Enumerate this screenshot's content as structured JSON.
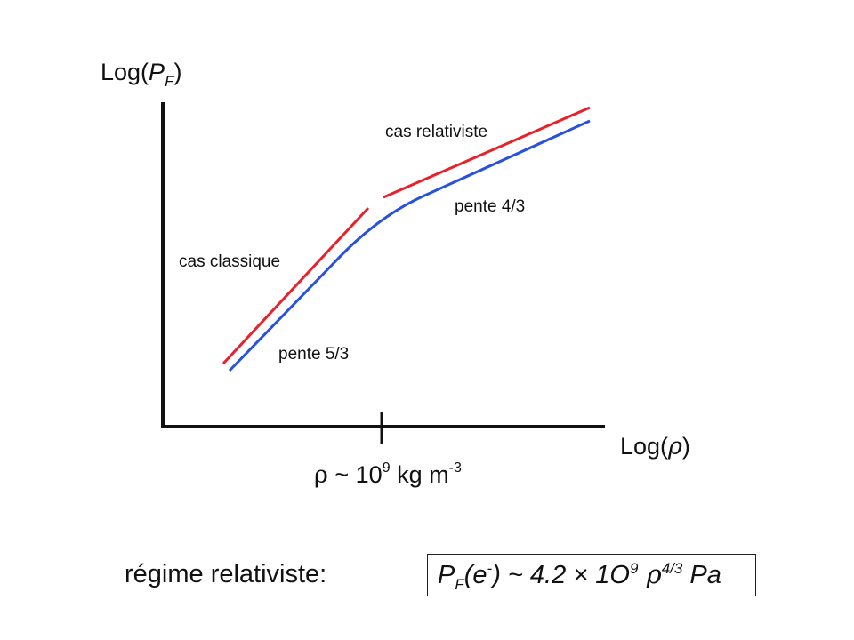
{
  "axes": {
    "y_title_prefix": "Log(",
    "y_title_var": "P",
    "y_title_sub": "F",
    "y_title_suffix": ")",
    "x_title_prefix": "Log(",
    "x_title_var": "ρ",
    "x_title_suffix": ")"
  },
  "curves": {
    "classique_label": "cas classique",
    "relativiste_label": "cas relativiste",
    "slope_classique": "pente 5/3",
    "slope_relativiste": "pente 4/3"
  },
  "threshold": {
    "rho": "ρ",
    "approx": " ~ 10",
    "exp": "9",
    "unit": " kg m",
    "unit_exp": "-3"
  },
  "regime": {
    "label": "régime relativiste:"
  },
  "formula": {
    "p": "P",
    "p_sub": "F",
    "paren_open": "(e",
    "e_sup": "-",
    "mid": ") ~ 4.2 × 1O",
    "exp": "9",
    "rho": " ρ",
    "rho_exp": "4/3",
    "unit": " Pa"
  },
  "colors": {
    "axis": "#111111",
    "asymptote": "#e8212a",
    "curve": "#2851e0"
  }
}
